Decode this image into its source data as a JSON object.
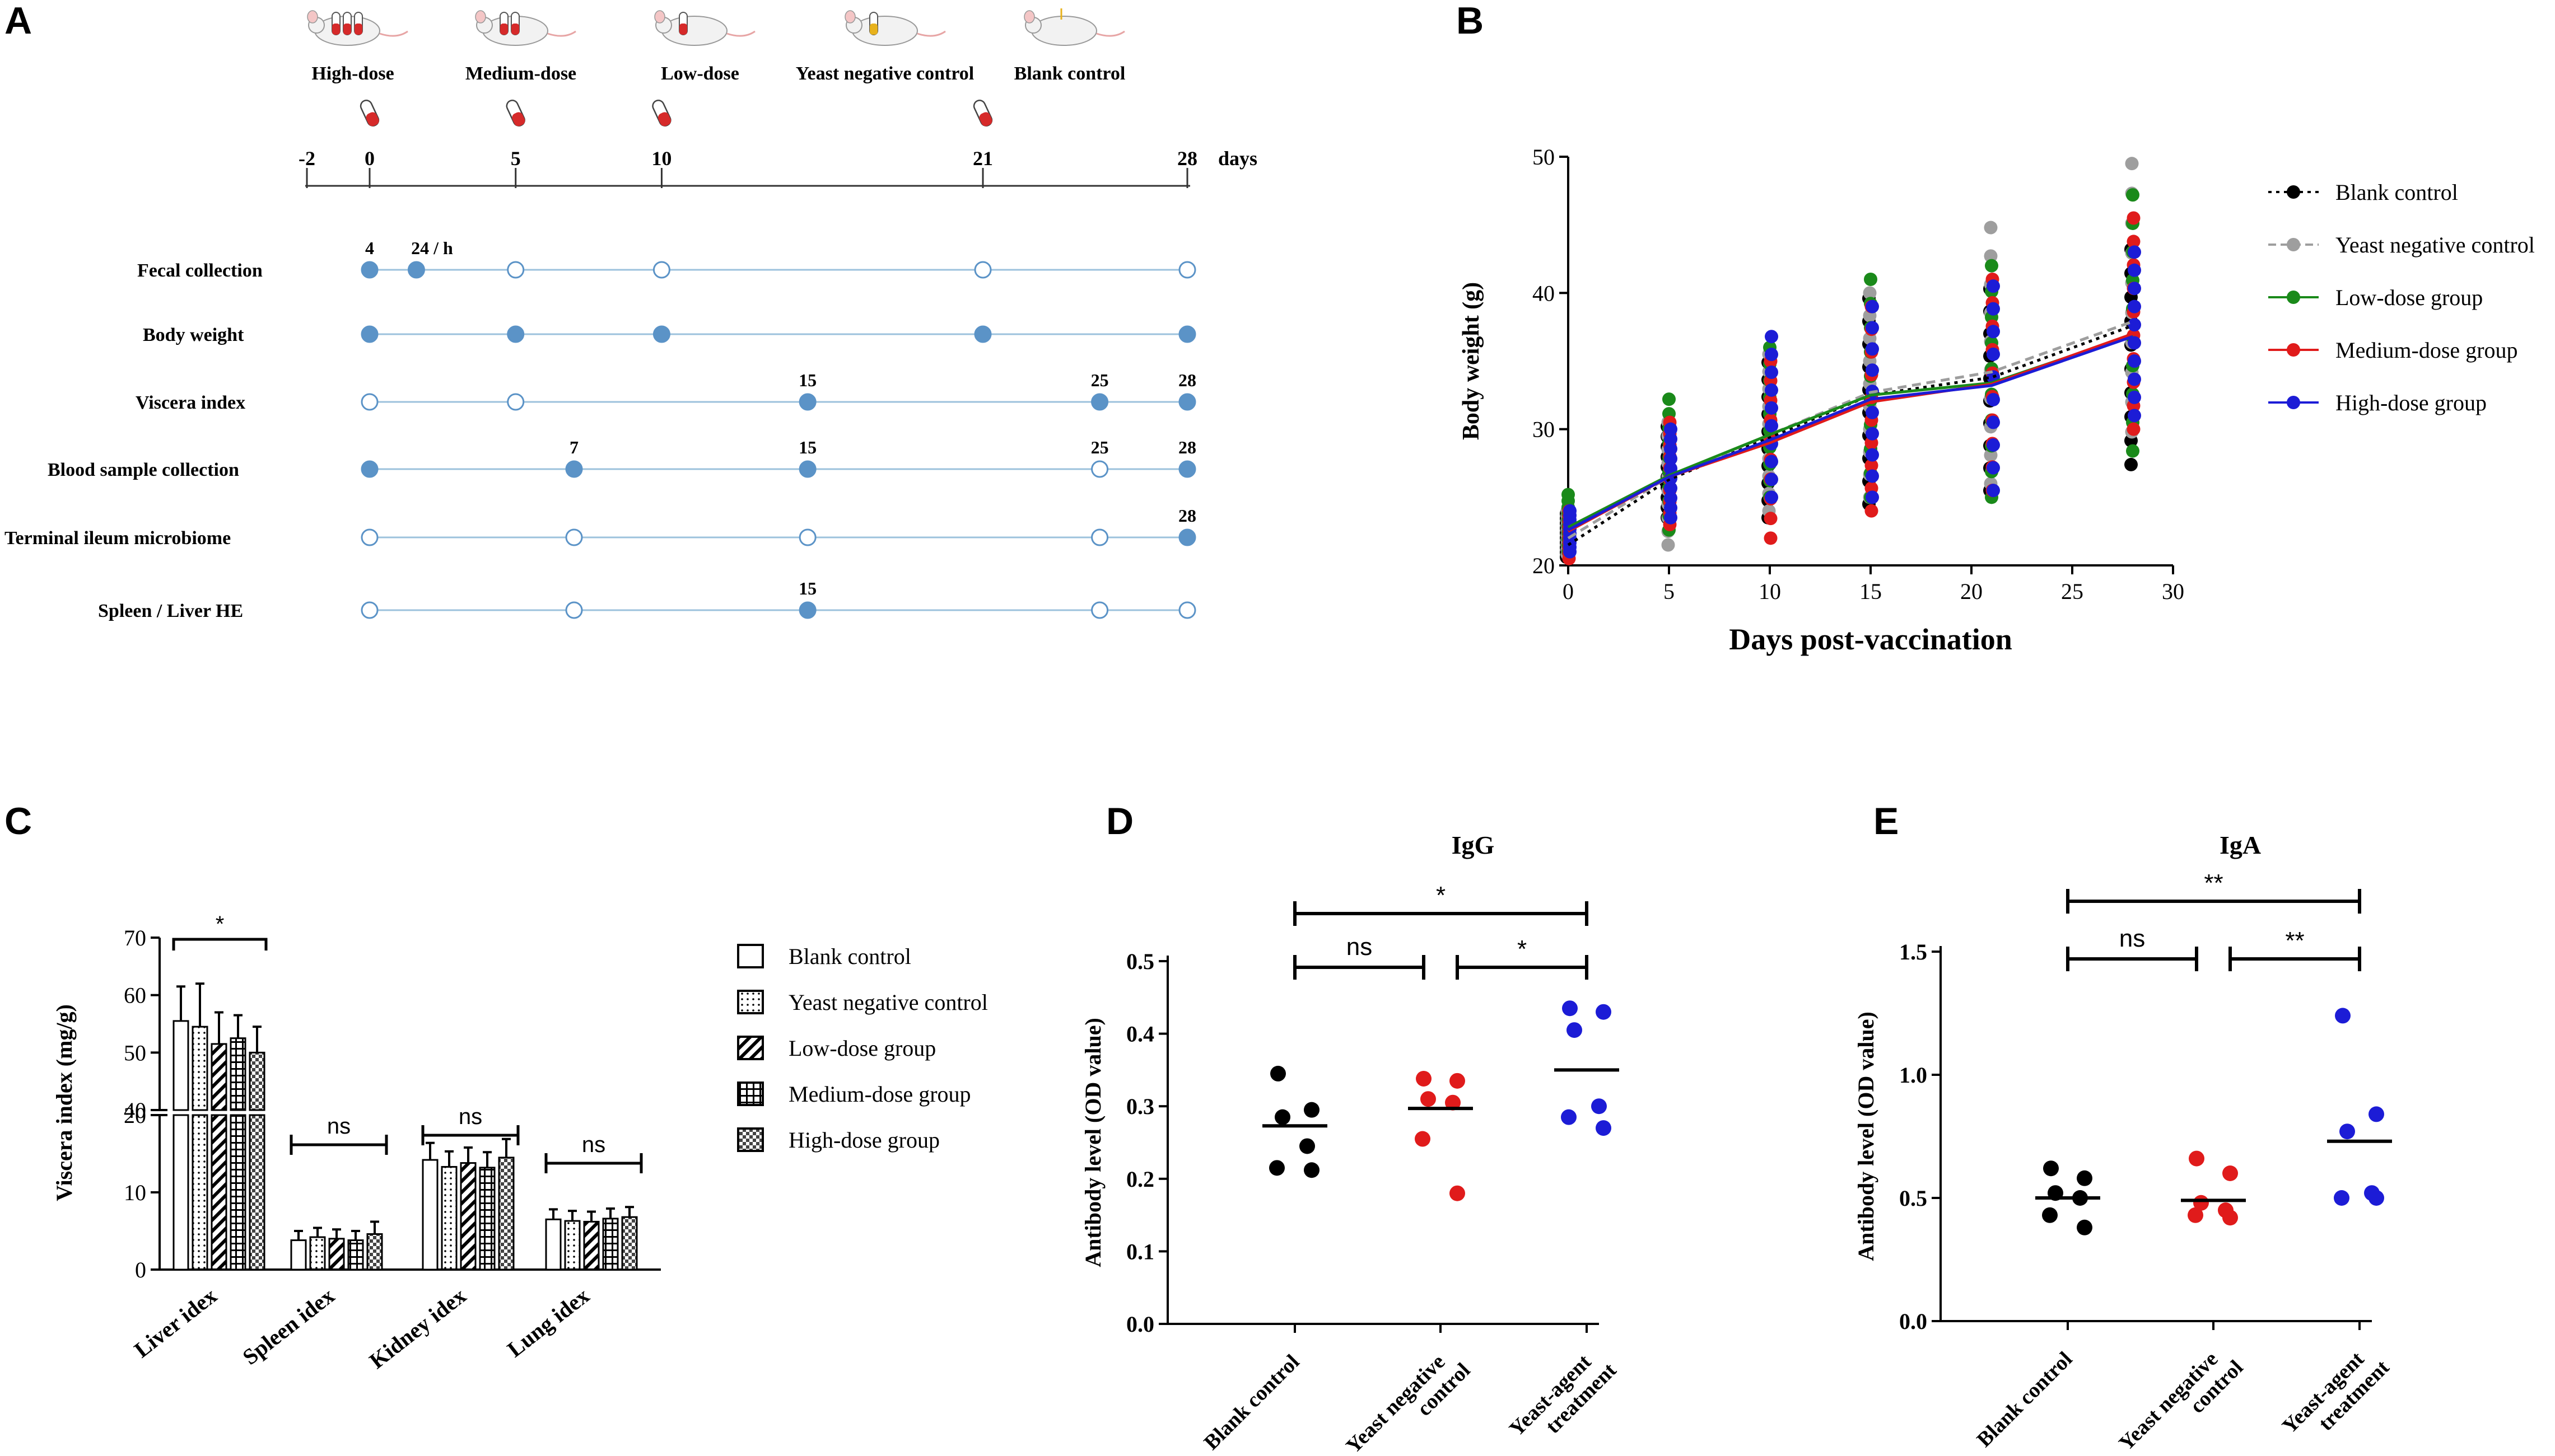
{
  "panels": {
    "A": "A",
    "B": "B",
    "C": "C",
    "D": "D",
    "E": "E"
  },
  "timeline": {
    "groups": [
      "High-dose",
      "Medium-dose",
      "Low-dose",
      "Yeast negative control",
      "Blank control"
    ],
    "days": [
      -2,
      0,
      5,
      10,
      21,
      28
    ],
    "days_unit": "days",
    "dose_days": [
      0,
      5,
      10,
      21
    ],
    "rows": [
      {
        "label": "Fecal collection",
        "points": [
          [
            0,
            1
          ],
          [
            1.6,
            1
          ],
          [
            5,
            0
          ],
          [
            10,
            0
          ],
          [
            21,
            0
          ],
          [
            28,
            0
          ]
        ],
        "annotations": [
          {
            "day": 0,
            "text": "4"
          },
          {
            "day": 1.6,
            "text": "24 / h"
          }
        ]
      },
      {
        "label": "Body weight",
        "points": [
          [
            0,
            1
          ],
          [
            5,
            1
          ],
          [
            10,
            1
          ],
          [
            21,
            1
          ],
          [
            28,
            1
          ]
        ],
        "annotations": []
      },
      {
        "label": "Viscera index",
        "points": [
          [
            0,
            0
          ],
          [
            5,
            0
          ],
          [
            15,
            1
          ],
          [
            25,
            1
          ],
          [
            28,
            1
          ]
        ],
        "annotations": [
          {
            "day": 15,
            "text": "15"
          },
          {
            "day": 25,
            "text": "25"
          },
          {
            "day": 28,
            "text": "28"
          }
        ]
      },
      {
        "label": "Blood sample collection",
        "points": [
          [
            0,
            1
          ],
          [
            7,
            1
          ],
          [
            15,
            1
          ],
          [
            25,
            0
          ],
          [
            28,
            1
          ]
        ],
        "annotations": [
          {
            "day": 7,
            "text": "7"
          },
          {
            "day": 15,
            "text": "15"
          },
          {
            "day": 25,
            "text": "25"
          },
          {
            "day": 28,
            "text": "28"
          }
        ]
      },
      {
        "label": "Terminal ileum microbiome",
        "points": [
          [
            0,
            0
          ],
          [
            7,
            0
          ],
          [
            15,
            0
          ],
          [
            25,
            0
          ],
          [
            28,
            1
          ]
        ],
        "annotations": [
          {
            "day": 28,
            "text": "28"
          }
        ]
      },
      {
        "label": "Spleen / Liver HE",
        "points": [
          [
            0,
            0
          ],
          [
            7,
            0
          ],
          [
            15,
            1
          ],
          [
            25,
            0
          ],
          [
            28,
            0
          ]
        ],
        "annotations": [
          {
            "day": 15,
            "text": "15"
          }
        ]
      }
    ]
  },
  "chart_data": [
    {
      "id": "B",
      "type": "scatter",
      "xlabel": "Days post-vaccination",
      "ylabel": "Body weight (g)",
      "xlim": [
        0,
        30
      ],
      "ylim": [
        20,
        50
      ],
      "xticks": [
        0,
        5,
        10,
        15,
        20,
        25,
        30
      ],
      "yticks": [
        20,
        30,
        40,
        50
      ],
      "days": [
        0,
        5,
        10,
        15,
        21,
        28
      ],
      "series": [
        {
          "name": "Blank control",
          "color": "#000000",
          "dash": "dotted",
          "means": [
            21.5,
            26.3,
            29.4,
            32.5,
            33.8,
            37.6
          ],
          "mins": [
            20.6,
            23.5,
            23.5,
            24.5,
            25.5,
            27.4
          ],
          "maxs": [
            23.8,
            30.2,
            34.9,
            39.6,
            40.3,
            43.2
          ]
        },
        {
          "name": "Yeast negative control",
          "color": "#9e9e9e",
          "dash": "dashed",
          "means": [
            22.0,
            26.5,
            29.6,
            32.7,
            34.2,
            37.9
          ],
          "mins": [
            20.8,
            21.5,
            24.0,
            25.0,
            26.0,
            29.8
          ],
          "maxs": [
            24.0,
            30.5,
            35.5,
            40.0,
            44.8,
            49.5
          ]
        },
        {
          "name": "Low-dose group",
          "color": "#1a8a1a",
          "dash": "solid",
          "means": [
            22.8,
            26.6,
            29.6,
            32.5,
            33.4,
            36.9
          ],
          "mins": [
            21.0,
            22.6,
            25.0,
            25.0,
            25.0,
            28.4
          ],
          "maxs": [
            25.2,
            32.2,
            36.0,
            41.0,
            42.0,
            47.2
          ]
        },
        {
          "name": "Medium-dose group",
          "color": "#e01b1b",
          "dash": "solid",
          "means": [
            22.5,
            26.5,
            29.0,
            32.0,
            33.3,
            37.0
          ],
          "mins": [
            20.5,
            23.0,
            22.0,
            24.0,
            25.5,
            30.0
          ],
          "maxs": [
            24.0,
            30.5,
            35.0,
            39.0,
            41.0,
            45.5
          ]
        },
        {
          "name": "High-dose group",
          "color": "#1c1cd6",
          "dash": "solid",
          "means": [
            22.6,
            26.5,
            29.2,
            32.2,
            33.2,
            36.8
          ],
          "mins": [
            21.0,
            23.5,
            25.0,
            25.0,
            25.5,
            31.0
          ],
          "maxs": [
            24.0,
            30.0,
            36.8,
            39.0,
            40.5,
            43.0
          ]
        }
      ]
    },
    {
      "id": "C",
      "type": "bar",
      "ylabel": "Viscera index (mg/g)",
      "categories": [
        "Liver idex",
        "Spleen idex",
        "Kidney idex",
        "Lung idex"
      ],
      "yticks_lower": [
        0,
        10,
        20
      ],
      "yticks_upper": [
        40,
        50,
        60,
        70
      ],
      "series": [
        {
          "name": "Blank control",
          "values": [
            55.5,
            3.8,
            14.2,
            6.5
          ],
          "errors": [
            6,
            1.2,
            2.2,
            1.3
          ]
        },
        {
          "name": "Yeast negative control",
          "values": [
            54.5,
            4.2,
            13.3,
            6.3
          ],
          "errors": [
            7.5,
            1.2,
            2.0,
            1.3
          ]
        },
        {
          "name": "Low-dose group",
          "values": [
            51.5,
            4.0,
            13.8,
            6.2
          ],
          "errors": [
            5.5,
            1.2,
            2.0,
            1.3
          ]
        },
        {
          "name": "Medium-dose group",
          "values": [
            52.5,
            3.8,
            13.2,
            6.6
          ],
          "errors": [
            4,
            1.2,
            2.0,
            1.3
          ]
        },
        {
          "name": "High-dose group",
          "values": [
            50.0,
            4.6,
            14.5,
            6.8
          ],
          "errors": [
            4.5,
            1.6,
            2.4,
            1.3
          ]
        }
      ],
      "annotations": [
        "*",
        "ns",
        "ns",
        "ns"
      ]
    },
    {
      "id": "D",
      "type": "scatter",
      "title": "IgG",
      "ylabel": "Antibody level (OD value)",
      "categories": [
        "Blank control",
        "Yeast negative control",
        "Yeast-agent treatment"
      ],
      "ylim": [
        0,
        0.5
      ],
      "yticks": [
        "0.0",
        "0.1",
        "0.2",
        "0.3",
        "0.4",
        "0.5"
      ],
      "colors": [
        "#000000",
        "#e01b1b",
        "#1c1cd6"
      ],
      "points": [
        [
          0.345,
          0.295,
          0.285,
          0.245,
          0.215,
          0.212
        ],
        [
          0.338,
          0.335,
          0.31,
          0.305,
          0.255,
          0.18
        ],
        [
          0.435,
          0.43,
          0.405,
          0.3,
          0.285,
          0.27
        ]
      ],
      "means": [
        0.273,
        0.297,
        0.35
      ],
      "brackets": [
        {
          "from": 0,
          "to": 1,
          "label": "ns"
        },
        {
          "from": 1,
          "to": 2,
          "label": "*"
        },
        {
          "from": 0,
          "to": 2,
          "label": "*"
        }
      ]
    },
    {
      "id": "E",
      "type": "scatter",
      "title": "IgA",
      "ylabel": "Antibody level (OD value)",
      "categories": [
        "Blank control",
        "Yeast negative control",
        "Yeast-agent treatment"
      ],
      "ylim": [
        0,
        1.5
      ],
      "yticks": [
        "0.0",
        "0.5",
        "1.0",
        "1.5"
      ],
      "colors": [
        "#000000",
        "#e01b1b",
        "#1c1cd6"
      ],
      "points": [
        [
          0.62,
          0.58,
          0.52,
          0.5,
          0.43,
          0.38
        ],
        [
          0.66,
          0.6,
          0.48,
          0.45,
          0.43,
          0.42
        ],
        [
          1.24,
          0.84,
          0.77,
          0.52,
          0.5,
          0.5
        ]
      ],
      "means": [
        0.5,
        0.49,
        0.73
      ],
      "brackets": [
        {
          "from": 0,
          "to": 1,
          "label": "ns"
        },
        {
          "from": 1,
          "to": 2,
          "label": "**"
        },
        {
          "from": 0,
          "to": 2,
          "label": "**"
        }
      ]
    }
  ]
}
